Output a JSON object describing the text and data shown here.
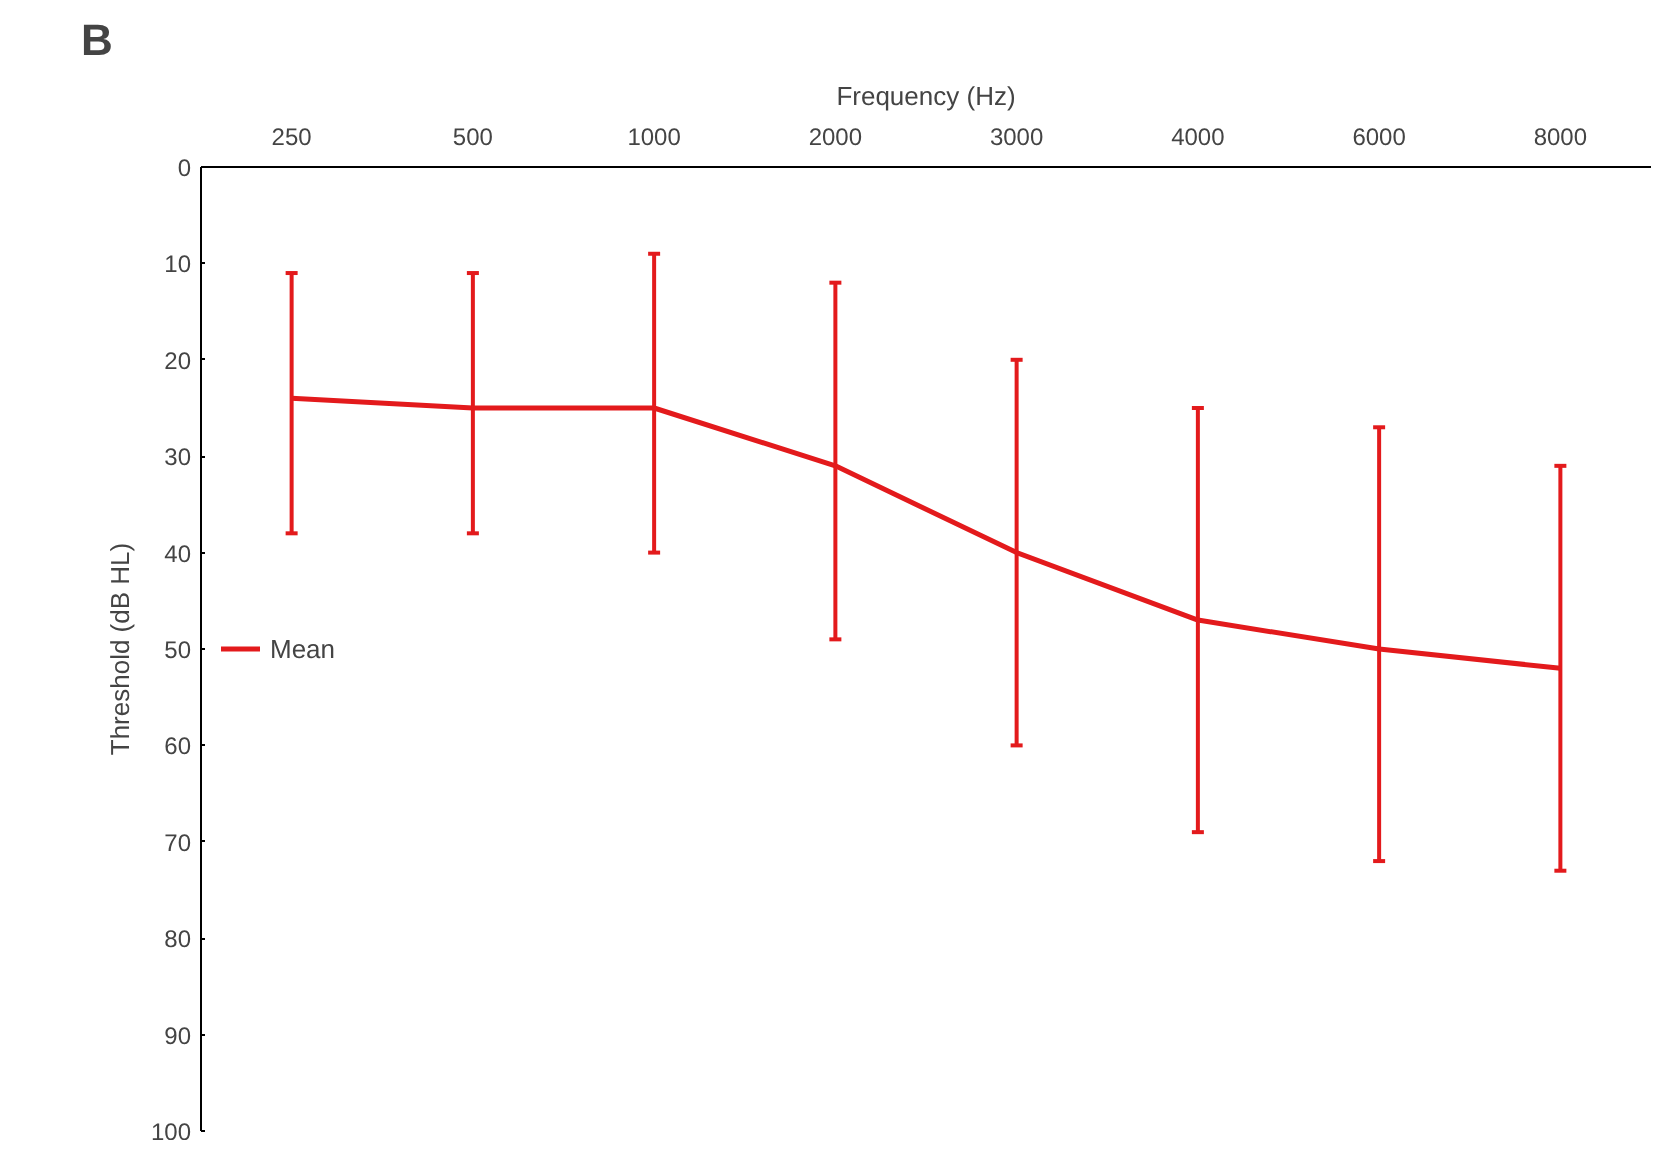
{
  "chart_data": {
    "type": "line",
    "xlabel": "Frequency (Hz)",
    "ylabel": "Threshold (dB HL)",
    "annotations": [
      "B"
    ],
    "categories": [
      "250",
      "500",
      "1000",
      "2000",
      "3000",
      "4000",
      "6000",
      "8000"
    ],
    "series": [
      {
        "name": "Mean",
        "color": "#e31a1c",
        "values": [
          24,
          25,
          25,
          31,
          40,
          47,
          50,
          52
        ],
        "errors": [
          [
            11,
            38
          ],
          [
            11,
            38
          ],
          [
            9,
            40
          ],
          [
            12,
            49
          ],
          [
            20,
            60
          ],
          [
            25,
            69
          ],
          [
            27,
            72
          ],
          [
            31,
            73
          ]
        ]
      }
    ],
    "ylim": [
      100,
      0
    ],
    "yticks": [
      0,
      10,
      20,
      30,
      40,
      50,
      60,
      70,
      80,
      90,
      100
    ],
    "grid": false,
    "legend": "left",
    "marker": "none",
    "line_style": "solid"
  }
}
